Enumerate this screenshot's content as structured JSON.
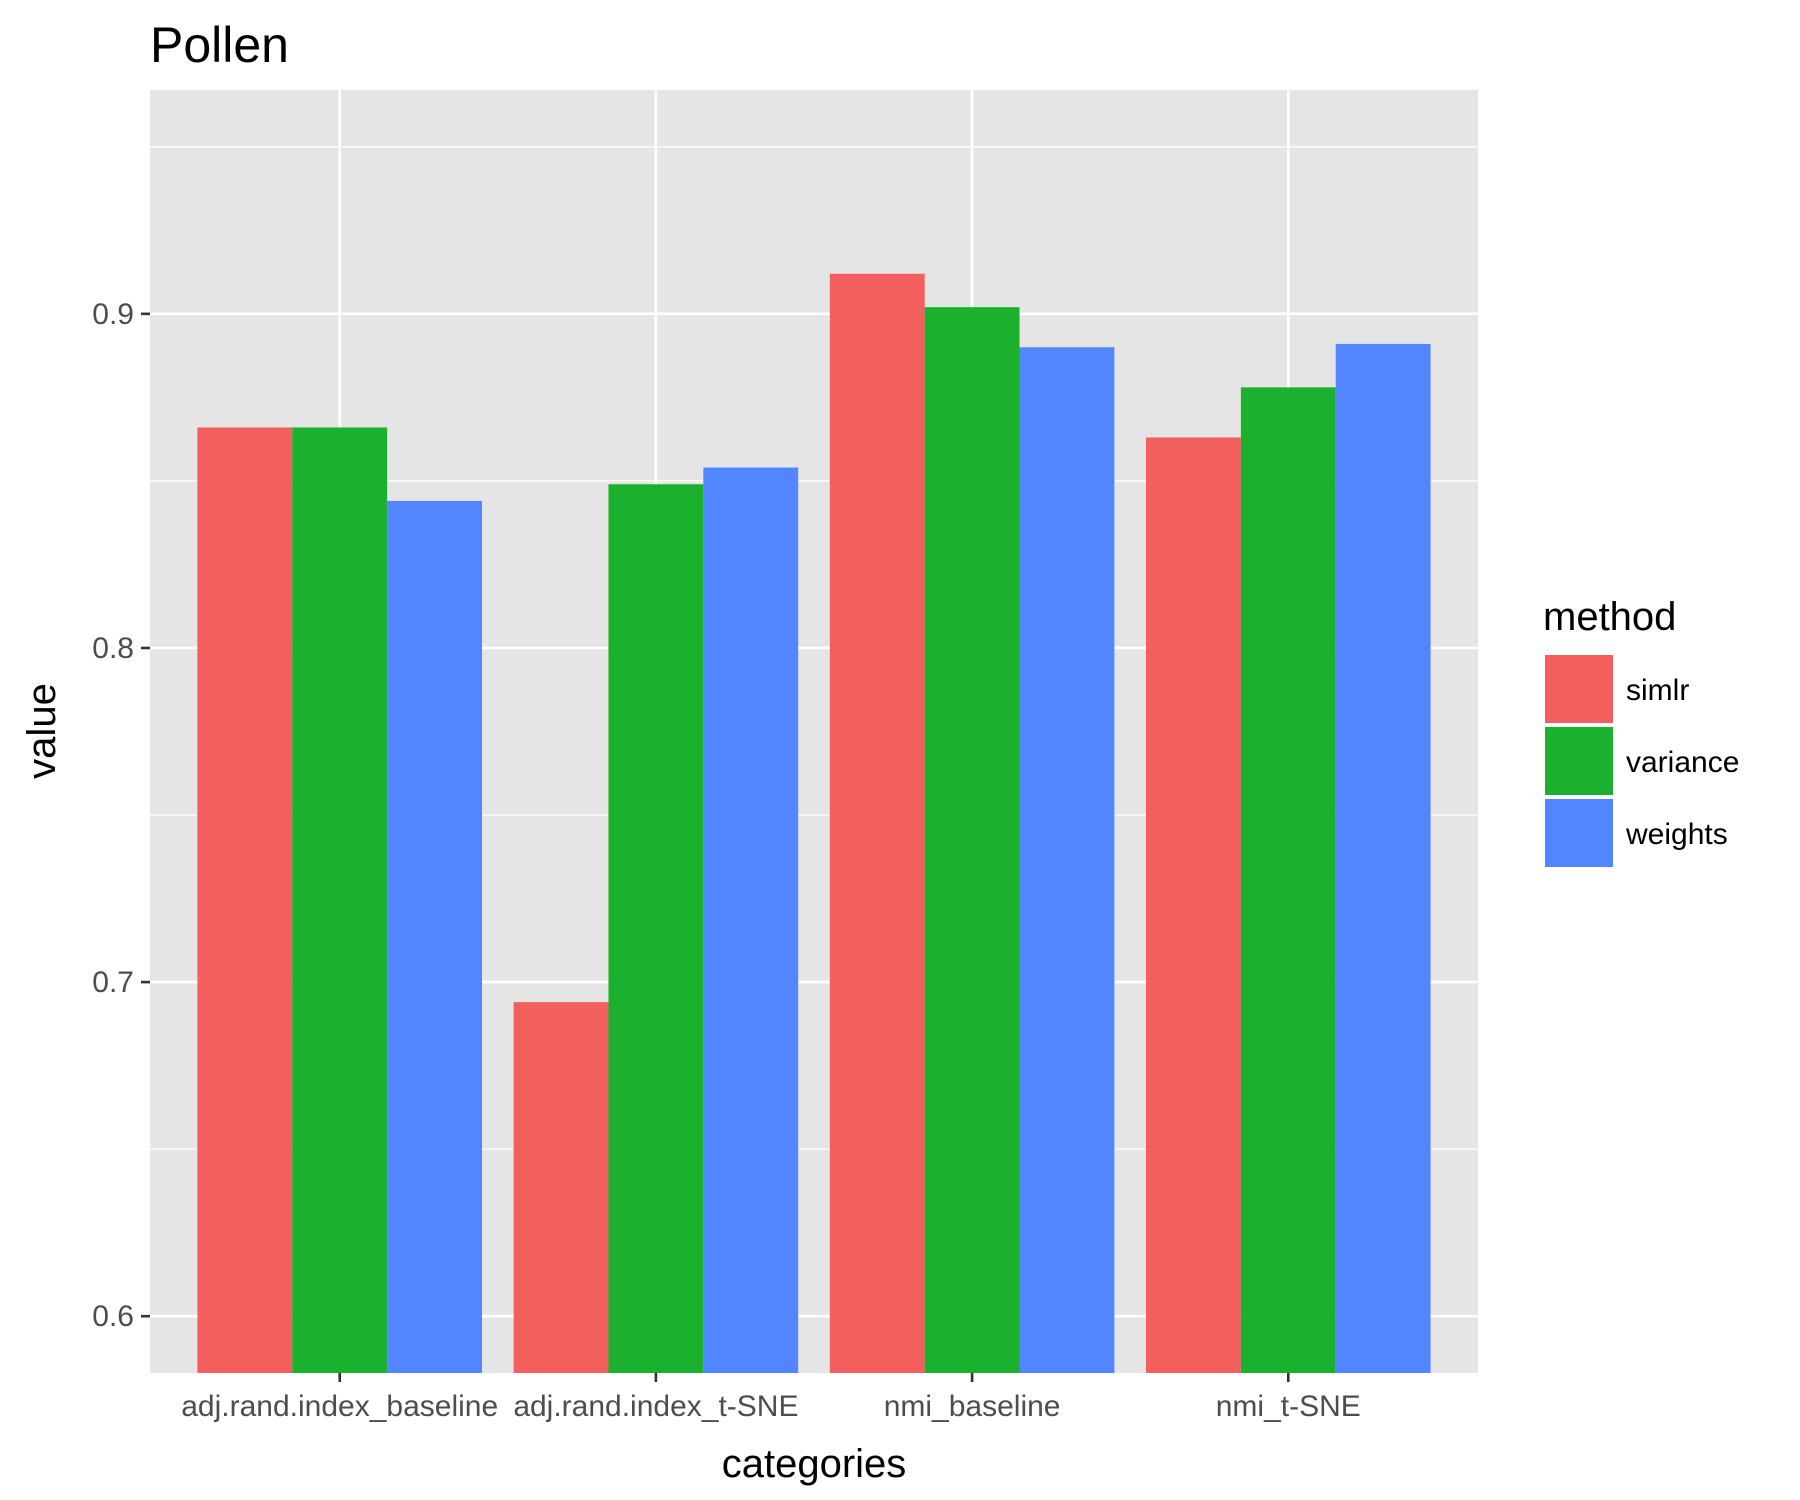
{
  "chart_data": {
    "type": "bar",
    "title": "Pollen",
    "xlabel": "categories",
    "ylabel": "value",
    "categories": [
      "adj.rand.index_baseline",
      "adj.rand.index_t-SNE",
      "nmi_baseline",
      "nmi_t-SNE"
    ],
    "series": [
      {
        "name": "simlr",
        "color": "#F25F5C",
        "values": [
          0.866,
          0.694,
          0.912,
          0.863
        ]
      },
      {
        "name": "variance",
        "color": "#1BB02E",
        "values": [
          0.866,
          0.849,
          0.902,
          0.878
        ]
      },
      {
        "name": "weights",
        "color": "#5186FF",
        "values": [
          0.844,
          0.854,
          0.89,
          0.891
        ]
      }
    ],
    "ylim": [
      0.583,
      0.967
    ],
    "y_ticks": [
      0.6,
      0.7,
      0.8,
      0.9
    ],
    "y_tick_labels": [
      "0.6",
      "0.7",
      "0.8",
      "0.9"
    ],
    "grid": true,
    "legend": {
      "title": "method",
      "position": "right"
    },
    "panel_background": "#E5E5E5",
    "grid_color": "#FFFFFF"
  }
}
